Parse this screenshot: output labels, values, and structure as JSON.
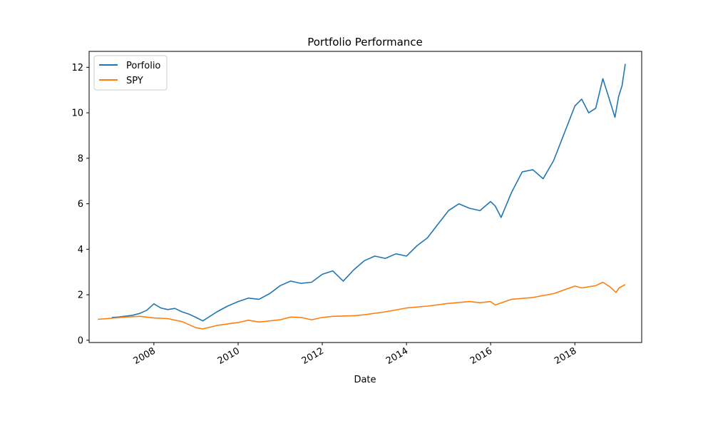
{
  "chart_data": {
    "type": "line",
    "title": "Portfolio Performance",
    "xlabel": "Date",
    "ylabel": "",
    "xlim": [
      "2006-06-18",
      "2019-08-04"
    ],
    "ylim": [
      -0.1,
      12.7
    ],
    "x_ticks": [
      "2008",
      "2010",
      "2012",
      "2014",
      "2016",
      "2018"
    ],
    "y_ticks": [
      "0",
      "2",
      "4",
      "6",
      "8",
      "10",
      "12"
    ],
    "grid": false,
    "legend_position": "top-left",
    "series": [
      {
        "name": "Porfolio",
        "color": "#1f77b4",
        "points": [
          [
            "2007-01-01",
            1.0
          ],
          [
            "2007-03-01",
            1.02
          ],
          [
            "2007-05-01",
            1.06
          ],
          [
            "2007-07-01",
            1.1
          ],
          [
            "2007-09-01",
            1.18
          ],
          [
            "2007-11-01",
            1.32
          ],
          [
            "2008-01-01",
            1.6
          ],
          [
            "2008-03-01",
            1.42
          ],
          [
            "2008-05-01",
            1.35
          ],
          [
            "2008-07-01",
            1.4
          ],
          [
            "2008-09-01",
            1.25
          ],
          [
            "2008-11-01",
            1.15
          ],
          [
            "2009-01-01",
            1.0
          ],
          [
            "2009-03-01",
            0.85
          ],
          [
            "2009-05-01",
            1.05
          ],
          [
            "2009-07-01",
            1.25
          ],
          [
            "2009-10-01",
            1.5
          ],
          [
            "2010-01-01",
            1.7
          ],
          [
            "2010-04-01",
            1.85
          ],
          [
            "2010-07-01",
            1.8
          ],
          [
            "2010-10-01",
            2.05
          ],
          [
            "2011-01-01",
            2.4
          ],
          [
            "2011-04-01",
            2.6
          ],
          [
            "2011-07-01",
            2.5
          ],
          [
            "2011-10-01",
            2.55
          ],
          [
            "2012-01-01",
            2.9
          ],
          [
            "2012-04-01",
            3.05
          ],
          [
            "2012-07-01",
            2.6
          ],
          [
            "2012-10-01",
            3.1
          ],
          [
            "2013-01-01",
            3.5
          ],
          [
            "2013-04-01",
            3.7
          ],
          [
            "2013-07-01",
            3.6
          ],
          [
            "2013-10-01",
            3.8
          ],
          [
            "2014-01-01",
            3.7
          ],
          [
            "2014-04-01",
            4.15
          ],
          [
            "2014-07-01",
            4.5
          ],
          [
            "2014-10-01",
            5.1
          ],
          [
            "2015-01-01",
            5.7
          ],
          [
            "2015-04-01",
            6.0
          ],
          [
            "2015-07-01",
            5.8
          ],
          [
            "2015-10-01",
            5.7
          ],
          [
            "2016-01-01",
            6.1
          ],
          [
            "2016-02-10",
            5.9
          ],
          [
            "2016-04-01",
            5.4
          ],
          [
            "2016-07-01",
            6.5
          ],
          [
            "2016-10-01",
            7.4
          ],
          [
            "2017-01-01",
            7.5
          ],
          [
            "2017-04-01",
            7.1
          ],
          [
            "2017-07-01",
            7.9
          ],
          [
            "2017-10-01",
            9.1
          ],
          [
            "2018-01-01",
            10.3
          ],
          [
            "2018-03-01",
            10.6
          ],
          [
            "2018-05-01",
            10.0
          ],
          [
            "2018-07-01",
            10.2
          ],
          [
            "2018-09-01",
            11.5
          ],
          [
            "2018-10-15",
            10.8
          ],
          [
            "2018-12-15",
            9.8
          ],
          [
            "2019-01-15",
            10.7
          ],
          [
            "2019-02-15",
            11.2
          ],
          [
            "2019-03-15",
            12.15
          ]
        ]
      },
      {
        "name": "SPY",
        "color": "#ff7f0e",
        "points": [
          [
            "2006-09-01",
            0.92
          ],
          [
            "2007-01-01",
            0.97
          ],
          [
            "2007-05-01",
            1.02
          ],
          [
            "2007-09-01",
            1.05
          ],
          [
            "2008-01-01",
            0.98
          ],
          [
            "2008-05-01",
            0.95
          ],
          [
            "2008-09-01",
            0.82
          ],
          [
            "2009-01-01",
            0.55
          ],
          [
            "2009-03-01",
            0.5
          ],
          [
            "2009-07-01",
            0.65
          ],
          [
            "2010-01-01",
            0.78
          ],
          [
            "2010-04-01",
            0.88
          ],
          [
            "2010-07-01",
            0.8
          ],
          [
            "2011-01-01",
            0.9
          ],
          [
            "2011-04-01",
            1.02
          ],
          [
            "2011-07-01",
            1.0
          ],
          [
            "2011-10-01",
            0.9
          ],
          [
            "2012-01-01",
            1.0
          ],
          [
            "2012-04-01",
            1.05
          ],
          [
            "2012-10-01",
            1.08
          ],
          [
            "2013-01-01",
            1.12
          ],
          [
            "2013-07-01",
            1.25
          ],
          [
            "2014-01-01",
            1.42
          ],
          [
            "2014-07-01",
            1.5
          ],
          [
            "2015-01-01",
            1.62
          ],
          [
            "2015-07-01",
            1.7
          ],
          [
            "2015-10-01",
            1.65
          ],
          [
            "2016-01-01",
            1.7
          ],
          [
            "2016-02-10",
            1.55
          ],
          [
            "2016-07-01",
            1.8
          ],
          [
            "2017-01-01",
            1.88
          ],
          [
            "2017-07-01",
            2.05
          ],
          [
            "2018-01-01",
            2.38
          ],
          [
            "2018-03-01",
            2.3
          ],
          [
            "2018-07-01",
            2.4
          ],
          [
            "2018-09-01",
            2.55
          ],
          [
            "2018-11-01",
            2.35
          ],
          [
            "2018-12-24",
            2.1
          ],
          [
            "2019-01-20",
            2.3
          ],
          [
            "2019-03-15",
            2.45
          ]
        ]
      }
    ]
  }
}
